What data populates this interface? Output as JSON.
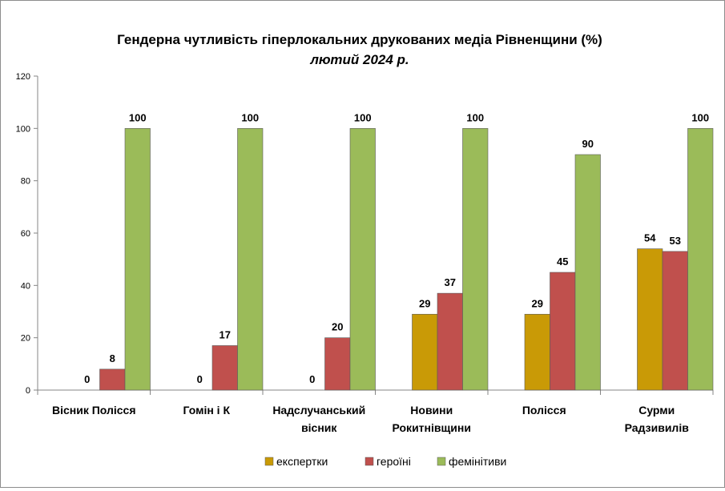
{
  "chart_data": {
    "type": "bar",
    "title": "Гендерна чутливість гіперлокальних друкованих медіа Рівненщини (%)",
    "subtitle": "лютий 2024 р.",
    "categories": [
      [
        "Вісник Полісся"
      ],
      [
        "Гомін і К"
      ],
      [
        "Надслучанський",
        "вісник"
      ],
      [
        "Новини",
        "Рокитнівщини"
      ],
      [
        "Полісся"
      ],
      [
        "Сурми",
        "Радзивилів"
      ]
    ],
    "series": [
      {
        "name": "експертки",
        "color": "#c99a06",
        "values": [
          0,
          0,
          0,
          29,
          29,
          54
        ]
      },
      {
        "name": "героїні",
        "color": "#c0504d",
        "values": [
          8,
          17,
          20,
          37,
          45,
          53
        ]
      },
      {
        "name": "фемінітиви",
        "color": "#9bbb59",
        "values": [
          100,
          100,
          100,
          100,
          90,
          100
        ]
      }
    ],
    "ylim": [
      0,
      120
    ],
    "yticks": [
      0,
      20,
      40,
      60,
      80,
      100,
      120
    ],
    "grid": false,
    "legend": "bottom"
  }
}
